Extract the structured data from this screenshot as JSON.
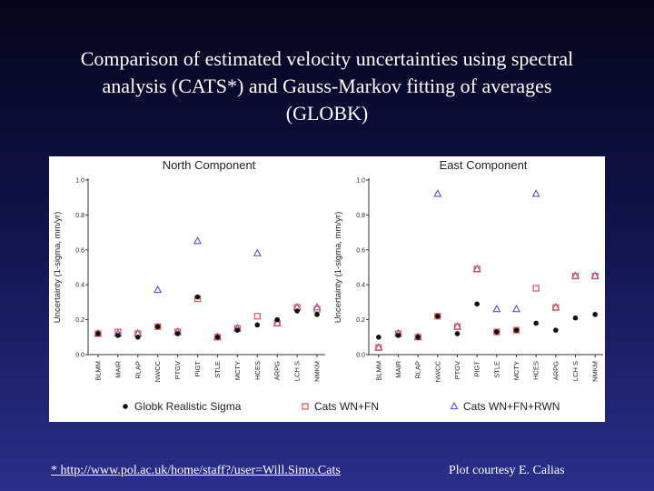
{
  "slide": {
    "title_lines": [
      "Comparison of estimated velocity uncertainties using spectral",
      "analysis (CATS*) and Gauss-Markov fitting of averages",
      "(GLOBK)"
    ],
    "footnote_url": "*  http://www.pol.ac.uk/home/staff?/user=Will.Simo.Cats",
    "footnote_credit": "Plot courtesy E. Calias"
  },
  "colors": {
    "globk": "#111111",
    "cats_wn_fn": "#e05050",
    "cats_wn_fn_rwn": "#5555cc"
  },
  "legend": [
    {
      "label": "Globk Realistic Sigma",
      "marker": "filled-circle"
    },
    {
      "label": "Cats WN+FN",
      "marker": "open-square"
    },
    {
      "label": "Cats WN+FN+RWN",
      "marker": "open-triangle"
    }
  ],
  "chart_data": [
    {
      "type": "scatter",
      "title": "North Component",
      "ylabel": "Uncertainty (1-sigma, mm/yr)",
      "ylim": [
        0,
        1.0
      ],
      "yticks": [
        "0.0",
        "0.2",
        "0.4",
        "0.6",
        "0.8",
        "1.0"
      ],
      "categories": [
        "BLMM",
        "MAIR",
        "RLAP",
        "NWCC",
        "PTGV",
        "PIGT",
        "STLE",
        "MCTY",
        "HCES",
        "ARPG",
        "LCH S",
        "NMKM"
      ],
      "series": [
        {
          "name": "Globk Realistic Sigma",
          "values": [
            0.12,
            0.11,
            0.1,
            0.16,
            0.12,
            0.33,
            0.1,
            0.14,
            0.17,
            0.2,
            0.25,
            0.23
          ]
        },
        {
          "name": "Cats WN+FN",
          "values": [
            0.12,
            0.13,
            0.12,
            0.16,
            0.13,
            0.32,
            0.1,
            0.15,
            0.22,
            0.18,
            0.27,
            0.26
          ]
        },
        {
          "name": "Cats WN+FN+RWN",
          "values": [
            0.12,
            0.12,
            0.12,
            0.37,
            0.13,
            0.65,
            0.1,
            0.15,
            0.58,
            0.18,
            0.27,
            0.27
          ]
        }
      ]
    },
    {
      "type": "scatter",
      "title": "East Component",
      "ylabel": "Uncertainty (1-sigma, mm/yr)",
      "ylim": [
        0,
        1.0
      ],
      "yticks": [
        "0.0",
        "0.2",
        "0.4",
        "0.6",
        "0.8",
        "1.0"
      ],
      "categories": [
        "BLMM",
        "MAIR",
        "RLAP",
        "NWCC",
        "PTGV",
        "PIGT",
        "STLE",
        "MCTY",
        "HCES",
        "ARPG",
        "LCH S",
        "NMKM"
      ],
      "series": [
        {
          "name": "Globk Realistic Sigma",
          "values": [
            0.1,
            0.11,
            0.1,
            0.22,
            0.12,
            0.29,
            0.13,
            0.14,
            0.18,
            0.14,
            0.21,
            0.23
          ]
        },
        {
          "name": "Cats WN+FN",
          "values": [
            0.04,
            0.12,
            0.1,
            0.22,
            0.16,
            0.49,
            0.13,
            0.14,
            0.38,
            0.27,
            0.45,
            0.45
          ]
        },
        {
          "name": "Cats WN+FN+RWN",
          "values": [
            0.04,
            0.12,
            0.1,
            0.92,
            0.16,
            0.49,
            0.26,
            0.26,
            0.92,
            0.27,
            0.45,
            0.45
          ]
        }
      ]
    }
  ]
}
